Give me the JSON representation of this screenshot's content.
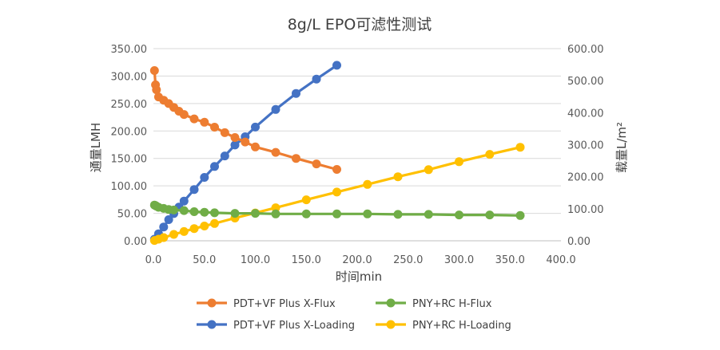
{
  "chart_data": {
    "type": "line",
    "title": "8g/L EPO可滤性测试",
    "xlabel": "时间min",
    "ylabel_left": "通量LMH",
    "ylabel_right": "载量L/m²",
    "xlim": [
      0,
      400
    ],
    "ylim_left": [
      0,
      350
    ],
    "ylim_right": [
      0,
      600
    ],
    "x_ticks": [
      "0.0",
      "50.0",
      "100.0",
      "150.0",
      "200.0",
      "250.0",
      "300.0",
      "350.0",
      "400.0"
    ],
    "y_left_ticks": [
      "0.00",
      "50.00",
      "100.00",
      "150.00",
      "200.00",
      "250.00",
      "300.00",
      "350.00"
    ],
    "y_right_ticks": [
      "0.00",
      "100.00",
      "200.00",
      "300.00",
      "400.00",
      "500.00",
      "600.00"
    ],
    "grid": true,
    "legend_position": "bottom",
    "series": [
      {
        "name": "PDT+VF Plus X-Flux",
        "axis": "left",
        "color": "#ED7D31",
        "x": [
          1,
          2,
          3,
          5,
          10,
          15,
          20,
          25,
          30,
          40,
          50,
          60,
          70,
          80,
          90,
          100,
          120,
          140,
          160,
          180
        ],
        "y": [
          310,
          284,
          275,
          262,
          256,
          250,
          243,
          236,
          230,
          222,
          216,
          207,
          197,
          188,
          180,
          171,
          161,
          150,
          140,
          130
        ]
      },
      {
        "name": "PNY+RC H-Flux",
        "axis": "left",
        "color": "#70AD47",
        "x": [
          1,
          2,
          3,
          5,
          10,
          15,
          20,
          30,
          40,
          50,
          60,
          80,
          100,
          120,
          150,
          180,
          210,
          240,
          270,
          300,
          330,
          360
        ],
        "y": [
          65,
          64,
          63,
          61,
          59,
          57,
          56,
          55,
          53,
          52,
          51,
          50,
          50,
          49,
          49,
          49,
          49,
          48,
          48,
          47,
          47,
          46
        ]
      },
      {
        "name": "PDT+VF Plus X-Loading",
        "axis": "right",
        "color": "#4472C4",
        "x": [
          1,
          5,
          10,
          15,
          20,
          25,
          30,
          40,
          50,
          60,
          70,
          80,
          90,
          100,
          120,
          140,
          160,
          180
        ],
        "y": [
          5,
          22,
          43,
          66,
          85,
          105,
          124,
          160,
          198,
          232,
          265,
          299,
          325,
          355,
          410,
          460,
          505,
          548
        ]
      },
      {
        "name": "PNY+RC H-Loading",
        "axis": "right",
        "color": "#FFC000",
        "x": [
          1,
          5,
          10,
          20,
          30,
          40,
          50,
          60,
          80,
          100,
          120,
          150,
          180,
          210,
          240,
          270,
          300,
          330,
          360
        ],
        "y": [
          1,
          5,
          10,
          20,
          29,
          38,
          46,
          54,
          71,
          87,
          103,
          128,
          152,
          176,
          200,
          222,
          247,
          270,
          292
        ]
      }
    ]
  }
}
